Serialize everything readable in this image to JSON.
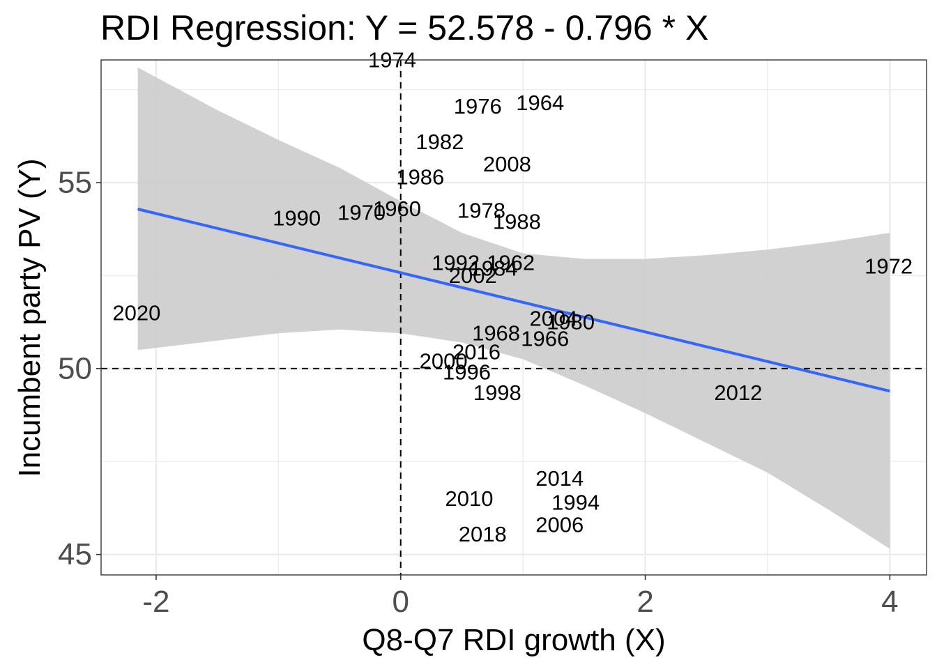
{
  "chart_data": {
    "type": "scatter",
    "title": "RDI Regression: Y = 52.578 - 0.796  * X",
    "xlabel": "Q8-Q7 RDI growth (X)",
    "ylabel": "Incumbent party PV (Y)",
    "xlim": [
      -2.45,
      4.3
    ],
    "ylim": [
      44.45,
      58.3
    ],
    "x_ticks": [
      -2,
      0,
      2,
      4
    ],
    "x_tick_labels": [
      "-2",
      "0",
      "2",
      "4"
    ],
    "y_ticks": [
      45,
      50,
      55
    ],
    "y_tick_labels": [
      "45",
      "50",
      "55"
    ],
    "grid": true,
    "background": "white",
    "regression": {
      "intercept": 52.578,
      "slope": -0.796,
      "x_range": [
        -2.15,
        4.0
      ]
    },
    "confidence_band": {
      "x": [
        -2.15,
        -1.5,
        -1.0,
        -0.5,
        0.0,
        0.5,
        1.0,
        1.5,
        2.0,
        2.5,
        3.0,
        3.5,
        4.0
      ],
      "upper": [
        58.1,
        56.95,
        56.15,
        55.4,
        54.5,
        53.65,
        53.1,
        52.95,
        52.95,
        53.05,
        53.2,
        53.4,
        53.65
      ],
      "lower": [
        50.5,
        50.75,
        50.95,
        51.05,
        50.95,
        50.7,
        50.25,
        49.55,
        48.8,
        48.0,
        47.2,
        46.2,
        45.15
      ]
    },
    "reference_lines": {
      "x": 0,
      "y": 50
    },
    "colors": {
      "line": "#3366FF",
      "band": "#cccccc",
      "grid": "#ebebeb",
      "panel_border": "#333333"
    },
    "points": [
      {
        "label": "1974",
        "x": -0.07,
        "y": 58.3
      },
      {
        "label": "1976",
        "x": 0.63,
        "y": 57.05
      },
      {
        "label": "1964",
        "x": 1.14,
        "y": 57.15
      },
      {
        "label": "1982",
        "x": 0.32,
        "y": 56.1
      },
      {
        "label": "2008",
        "x": 0.87,
        "y": 55.5
      },
      {
        "label": "1986",
        "x": 0.16,
        "y": 55.15
      },
      {
        "label": "1960",
        "x": -0.03,
        "y": 54.3
      },
      {
        "label": "1970",
        "x": -0.32,
        "y": 54.2
      },
      {
        "label": "1990",
        "x": -0.85,
        "y": 54.05
      },
      {
        "label": "1978",
        "x": 0.66,
        "y": 54.25
      },
      {
        "label": "1988",
        "x": 0.95,
        "y": 53.95
      },
      {
        "label": "1992",
        "x": 0.45,
        "y": 52.85
      },
      {
        "label": "1962",
        "x": 0.9,
        "y": 52.85
      },
      {
        "label": "1984",
        "x": 0.76,
        "y": 52.7
      },
      {
        "label": "2002",
        "x": 0.59,
        "y": 52.5
      },
      {
        "label": "1972",
        "x": 3.99,
        "y": 52.75
      },
      {
        "label": "2020",
        "x": -2.16,
        "y": 51.5
      },
      {
        "label": "2004",
        "x": 1.25,
        "y": 51.35
      },
      {
        "label": "1980",
        "x": 1.39,
        "y": 51.25
      },
      {
        "label": "1968",
        "x": 0.78,
        "y": 50.95
      },
      {
        "label": "1966",
        "x": 1.18,
        "y": 50.8
      },
      {
        "label": "2016",
        "x": 0.62,
        "y": 50.45
      },
      {
        "label": "2000",
        "x": 0.35,
        "y": 50.2
      },
      {
        "label": "1996",
        "x": 0.54,
        "y": 49.9
      },
      {
        "label": "1998",
        "x": 0.79,
        "y": 49.35
      },
      {
        "label": "2012",
        "x": 2.76,
        "y": 49.35
      },
      {
        "label": "2014",
        "x": 1.3,
        "y": 47.05
      },
      {
        "label": "1994",
        "x": 1.43,
        "y": 46.4
      },
      {
        "label": "2010",
        "x": 0.56,
        "y": 46.5
      },
      {
        "label": "2006",
        "x": 1.3,
        "y": 45.8
      },
      {
        "label": "2018",
        "x": 0.67,
        "y": 45.55
      }
    ]
  }
}
